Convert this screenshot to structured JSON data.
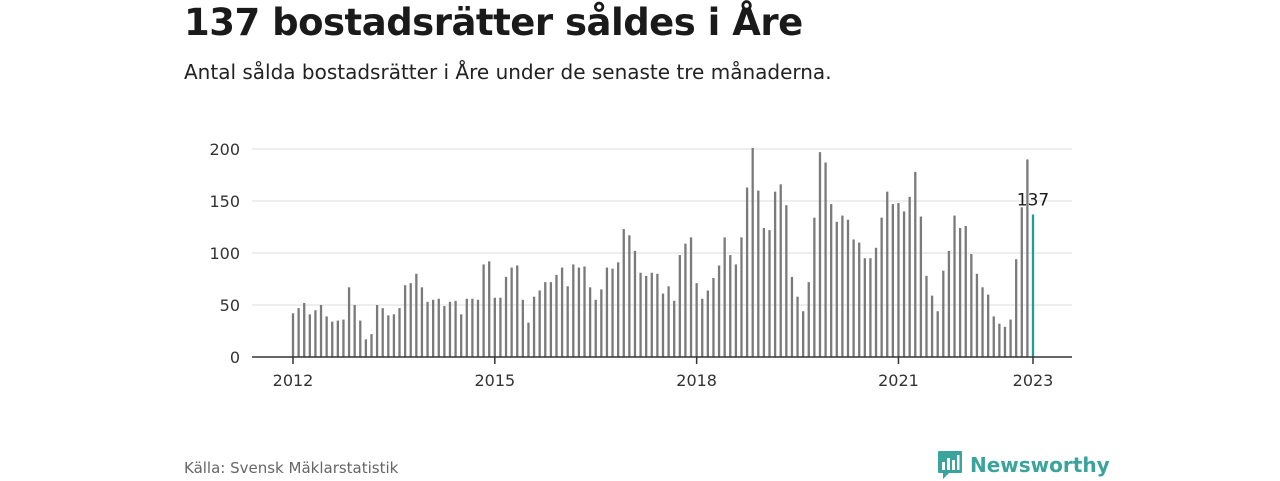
{
  "title": "137 bostadsrätter såldes i Åre",
  "subtitle": "Antal sålda bostadsrätter i Åre under de senaste tre månaderna.",
  "source": "Källa: Svensk Mäklarstatistik",
  "brand": {
    "name": "Newsworthy",
    "icon": "newsworthy-logo-icon"
  },
  "colors": {
    "bar": "#7a7a7a",
    "highlight": "#1f9e96",
    "grid": "#dddddd",
    "axis": "#333333",
    "brand": "#3aa39b"
  },
  "chart_data": {
    "type": "bar",
    "title": "",
    "xlabel": "",
    "ylabel": "",
    "ylim": [
      0,
      200
    ],
    "yticks": [
      "0",
      "50",
      "100",
      "150",
      "200"
    ],
    "xticks": [
      "2012",
      "2015",
      "2018",
      "2021",
      "2023"
    ],
    "x_start": "2012-01",
    "x_end": "2023-01",
    "grid": true,
    "annotation": {
      "label": "137",
      "x": "2023-01",
      "value": 137
    },
    "series": [
      {
        "values": [
          42,
          47,
          52,
          41,
          45,
          50,
          39,
          34,
          35,
          36,
          67,
          50,
          35,
          17,
          22,
          50,
          47,
          40,
          41,
          47,
          69,
          71,
          80,
          67,
          53,
          55,
          56,
          49,
          53,
          54,
          41,
          56,
          56,
          55,
          89,
          92,
          57,
          57,
          77,
          86,
          88,
          55,
          33,
          58,
          64,
          72,
          72,
          79,
          86,
          68,
          89,
          86,
          87,
          67,
          55,
          65,
          86,
          85,
          91,
          123,
          117,
          102,
          81,
          78,
          81,
          80,
          61,
          68,
          54,
          98,
          109,
          115,
          71,
          56,
          64,
          76,
          88,
          115,
          98,
          89,
          115,
          163,
          201,
          160,
          124,
          122,
          159,
          166,
          146,
          77,
          58,
          44,
          72,
          134,
          197,
          187,
          147,
          130,
          136,
          132,
          113,
          110,
          95,
          95,
          105,
          134,
          159,
          147,
          148,
          140,
          154,
          178,
          135,
          78,
          59,
          44,
          83,
          102,
          136,
          124,
          126,
          99,
          80,
          67,
          60,
          39,
          32,
          29,
          36,
          94,
          144,
          190,
          137
        ]
      }
    ]
  }
}
